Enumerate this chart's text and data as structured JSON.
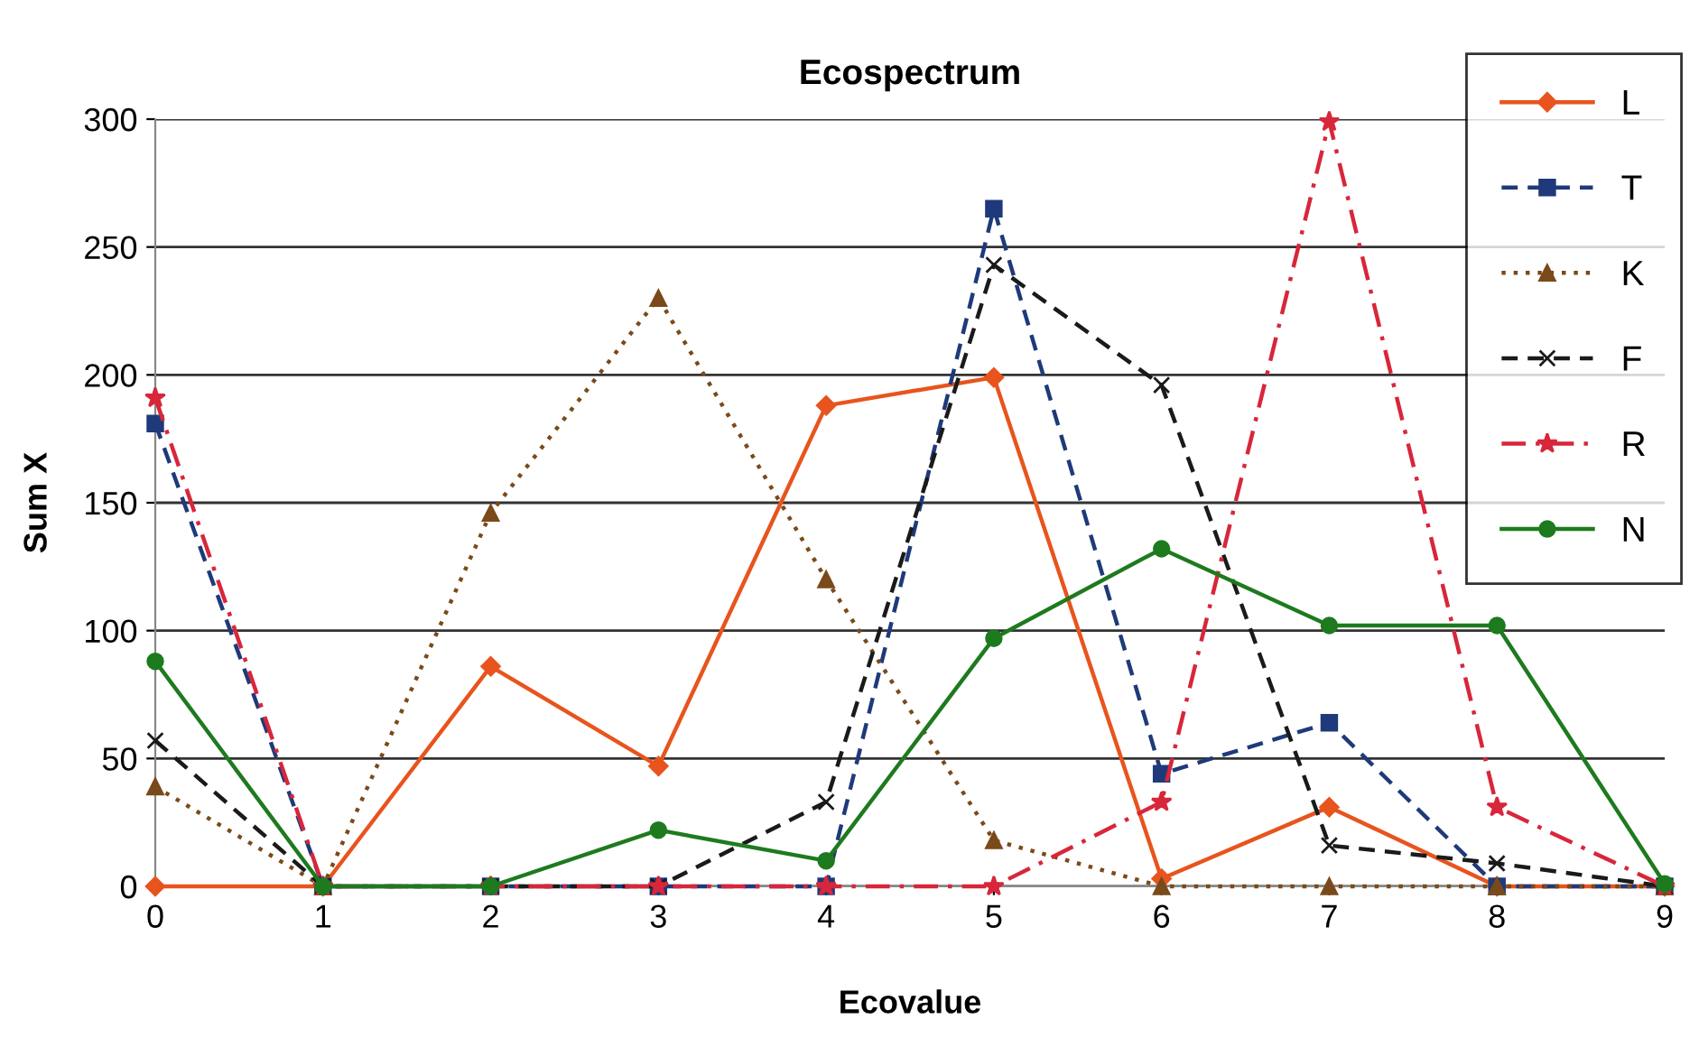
{
  "chart_data": {
    "type": "line",
    "title": "Ecospectrum",
    "xlabel": "Ecovalue",
    "ylabel": "Sum X",
    "x": [
      0,
      1,
      2,
      3,
      4,
      5,
      6,
      7,
      8,
      9
    ],
    "xlim": [
      0,
      9
    ],
    "xticks": [
      0,
      1,
      2,
      3,
      4,
      5,
      6,
      7,
      8,
      9
    ],
    "ylim": [
      0,
      300
    ],
    "yticks": [
      0,
      50,
      100,
      150,
      200,
      250,
      300
    ],
    "grid": "y",
    "legend": "top right",
    "series": [
      {
        "name": "L",
        "color": "#e8541e",
        "marker": "diamond",
        "line_style": "solid",
        "values": [
          0,
          0,
          86,
          47,
          188,
          199,
          3,
          31,
          0,
          0
        ]
      },
      {
        "name": "T",
        "color": "#1f3a7a",
        "marker": "square",
        "line_style": "dashed",
        "values": [
          181,
          0,
          0,
          0,
          0,
          265,
          44,
          64,
          0,
          0
        ]
      },
      {
        "name": "K",
        "color": "#7a4a1a",
        "marker": "triangle",
        "line_style": "dotted",
        "values": [
          39,
          0,
          146,
          230,
          120,
          18,
          0,
          0,
          0,
          0
        ]
      },
      {
        "name": "F",
        "color": "#1a1a1a",
        "marker": "cross",
        "line_style": "dashed",
        "values": [
          57,
          0,
          0,
          0,
          33,
          243,
          196,
          16,
          9,
          0
        ]
      },
      {
        "name": "R",
        "color": "#d8263a",
        "marker": "star",
        "line_style": "dashdot",
        "values": [
          191,
          0,
          0,
          0,
          0,
          0,
          33,
          299,
          31,
          0
        ]
      },
      {
        "name": "N",
        "color": "#1e7a1e",
        "marker": "circle",
        "line_style": "solid",
        "values": [
          88,
          0,
          0,
          22,
          10,
          97,
          132,
          102,
          102,
          1
        ]
      }
    ]
  }
}
